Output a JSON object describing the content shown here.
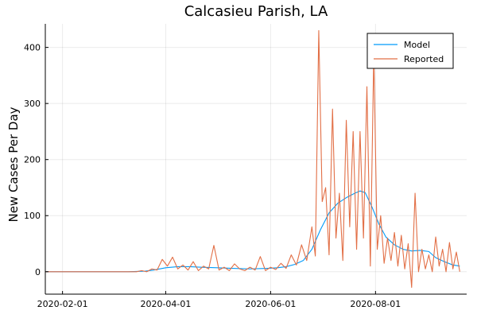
{
  "chart_data": {
    "type": "line",
    "title": "Calcasieu Parish, LA",
    "xlabel": "",
    "ylabel": "New Cases Per Day",
    "x_tick_labels": [
      "2020-02-01",
      "2020-04-01",
      "2020-06-01",
      "2020-08-01"
    ],
    "x_tick_dates": [
      "2020-02-01",
      "2020-04-01",
      "2020-06-01",
      "2020-08-01"
    ],
    "xlim": [
      "2020-01-22",
      "2020-09-23"
    ],
    "y_ticks": [
      0,
      100,
      200,
      300,
      400
    ],
    "ylim": [
      -40,
      442
    ],
    "grid": true,
    "legend_position": "top-right",
    "series": [
      {
        "name": "Model",
        "color": "#009af9",
        "points": [
          [
            "2020-01-22",
            0
          ],
          [
            "2020-03-10",
            0
          ],
          [
            "2020-03-20",
            1
          ],
          [
            "2020-03-25",
            3
          ],
          [
            "2020-04-01",
            7
          ],
          [
            "2020-04-08",
            9
          ],
          [
            "2020-04-15",
            9
          ],
          [
            "2020-04-22",
            8
          ],
          [
            "2020-05-01",
            7
          ],
          [
            "2020-05-10",
            6
          ],
          [
            "2020-05-20",
            5
          ],
          [
            "2020-05-30",
            6
          ],
          [
            "2020-06-05",
            7
          ],
          [
            "2020-06-10",
            9
          ],
          [
            "2020-06-15",
            13
          ],
          [
            "2020-06-20",
            20
          ],
          [
            "2020-06-25",
            40
          ],
          [
            "2020-06-30",
            75
          ],
          [
            "2020-07-05",
            105
          ],
          [
            "2020-07-10",
            122
          ],
          [
            "2020-07-15",
            132
          ],
          [
            "2020-07-20",
            140
          ],
          [
            "2020-07-23",
            144
          ],
          [
            "2020-07-26",
            141
          ],
          [
            "2020-07-30",
            115
          ],
          [
            "2020-08-03",
            85
          ],
          [
            "2020-08-07",
            62
          ],
          [
            "2020-08-12",
            48
          ],
          [
            "2020-08-17",
            40
          ],
          [
            "2020-08-22",
            37
          ],
          [
            "2020-08-27",
            38
          ],
          [
            "2020-09-01",
            36
          ],
          [
            "2020-09-05",
            25
          ],
          [
            "2020-09-10",
            18
          ],
          [
            "2020-09-15",
            12
          ],
          [
            "2020-09-19",
            10
          ]
        ]
      },
      {
        "name": "Reported",
        "color": "#e26f46",
        "points": [
          [
            "2020-01-22",
            0
          ],
          [
            "2020-03-15",
            0
          ],
          [
            "2020-03-18",
            2
          ],
          [
            "2020-03-21",
            0
          ],
          [
            "2020-03-24",
            5
          ],
          [
            "2020-03-27",
            3
          ],
          [
            "2020-03-30",
            22
          ],
          [
            "2020-04-02",
            10
          ],
          [
            "2020-04-05",
            26
          ],
          [
            "2020-04-08",
            5
          ],
          [
            "2020-04-11",
            12
          ],
          [
            "2020-04-14",
            3
          ],
          [
            "2020-04-17",
            18
          ],
          [
            "2020-04-20",
            2
          ],
          [
            "2020-04-23",
            10
          ],
          [
            "2020-04-26",
            5
          ],
          [
            "2020-04-29",
            47
          ],
          [
            "2020-05-02",
            3
          ],
          [
            "2020-05-05",
            8
          ],
          [
            "2020-05-08",
            2
          ],
          [
            "2020-05-11",
            14
          ],
          [
            "2020-05-14",
            5
          ],
          [
            "2020-05-17",
            2
          ],
          [
            "2020-05-20",
            8
          ],
          [
            "2020-05-23",
            3
          ],
          [
            "2020-05-26",
            27
          ],
          [
            "2020-05-29",
            2
          ],
          [
            "2020-06-01",
            8
          ],
          [
            "2020-06-04",
            4
          ],
          [
            "2020-06-07",
            15
          ],
          [
            "2020-06-10",
            6
          ],
          [
            "2020-06-13",
            30
          ],
          [
            "2020-06-16",
            12
          ],
          [
            "2020-06-19",
            48
          ],
          [
            "2020-06-22",
            20
          ],
          [
            "2020-06-25",
            80
          ],
          [
            "2020-06-27",
            28
          ],
          [
            "2020-06-29",
            430
          ],
          [
            "2020-07-01",
            125
          ],
          [
            "2020-07-03",
            150
          ],
          [
            "2020-07-05",
            30
          ],
          [
            "2020-07-07",
            290
          ],
          [
            "2020-07-09",
            60
          ],
          [
            "2020-07-11",
            140
          ],
          [
            "2020-07-13",
            20
          ],
          [
            "2020-07-15",
            270
          ],
          [
            "2020-07-17",
            80
          ],
          [
            "2020-07-19",
            250
          ],
          [
            "2020-07-21",
            40
          ],
          [
            "2020-07-23",
            250
          ],
          [
            "2020-07-25",
            60
          ],
          [
            "2020-07-27",
            330
          ],
          [
            "2020-07-29",
            10
          ],
          [
            "2020-07-31",
            390
          ],
          [
            "2020-08-02",
            40
          ],
          [
            "2020-08-04",
            100
          ],
          [
            "2020-08-06",
            15
          ],
          [
            "2020-08-08",
            60
          ],
          [
            "2020-08-10",
            20
          ],
          [
            "2020-08-12",
            70
          ],
          [
            "2020-08-14",
            10
          ],
          [
            "2020-08-16",
            65
          ],
          [
            "2020-08-18",
            5
          ],
          [
            "2020-08-20",
            50
          ],
          [
            "2020-08-22",
            -28
          ],
          [
            "2020-08-24",
            140
          ],
          [
            "2020-08-26",
            0
          ],
          [
            "2020-08-28",
            40
          ],
          [
            "2020-08-30",
            5
          ],
          [
            "2020-09-01",
            30
          ],
          [
            "2020-09-03",
            0
          ],
          [
            "2020-09-05",
            62
          ],
          [
            "2020-09-07",
            10
          ],
          [
            "2020-09-09",
            40
          ],
          [
            "2020-09-11",
            0
          ],
          [
            "2020-09-13",
            52
          ],
          [
            "2020-09-15",
            5
          ],
          [
            "2020-09-17",
            35
          ],
          [
            "2020-09-19",
            0
          ]
        ]
      }
    ]
  }
}
